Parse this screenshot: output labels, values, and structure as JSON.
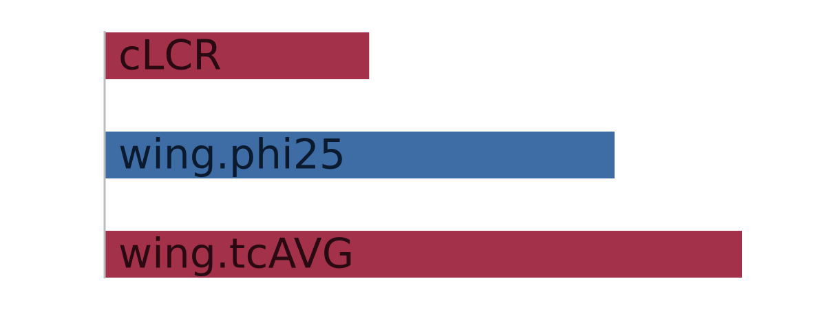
{
  "chart_data": {
    "type": "bar",
    "orientation": "horizontal",
    "categories": [
      "cLCR",
      "wing.phi25",
      "wing.tcAVG"
    ],
    "values": [
      0.415,
      0.8,
      1.0
    ],
    "signs": [
      "negative",
      "positive",
      "negative"
    ],
    "xlim": [
      0,
      1.0
    ],
    "title": "",
    "xlabel": "",
    "ylabel": "",
    "grid": false,
    "legend": "none"
  },
  "colors": {
    "negative": "#a4314a",
    "positive": "#3d6da4",
    "label_on_negative": "#2a0a12",
    "label_on_positive": "#0b1a2e",
    "axis": "#bbbbbb"
  }
}
